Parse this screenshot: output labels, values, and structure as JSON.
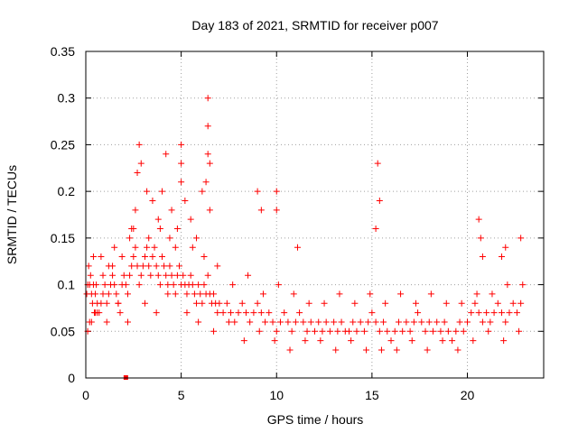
{
  "chart_data": {
    "type": "scatter",
    "title": "Day 183 of 2021, SRMTID for receiver p007",
    "xlabel": "GPS time / hours",
    "ylabel": "SRMTID / TECUs",
    "xlim": [
      0,
      24
    ],
    "ylim": [
      0,
      0.35
    ],
    "xticks": [
      0,
      5,
      10,
      15,
      20
    ],
    "yticks": [
      0,
      0.05,
      0.1,
      0.15,
      0.2,
      0.25,
      0.3,
      0.35
    ],
    "xtick_labels": [
      "0",
      "5",
      "10",
      "15",
      "20"
    ],
    "ytick_labels": [
      "0",
      "0.05",
      "0.1",
      "0.15",
      "0.2",
      "0.25",
      "0.3",
      "0.35"
    ],
    "grid": true,
    "marker": "plus",
    "color": "#ff0000",
    "series": [
      {
        "name": "p007",
        "x": [
          0.05,
          0.1,
          0.15,
          0.2,
          0.25,
          0.3,
          0.35,
          0.4,
          0.45,
          0.5,
          0.55,
          0.6,
          0.7,
          0.8,
          0.9,
          1.0,
          1.1,
          1.2,
          1.3,
          1.4,
          1.5,
          1.6,
          1.7,
          1.8,
          1.9,
          2.0,
          2.1,
          2.2,
          2.3,
          2.4,
          2.5,
          2.6,
          2.7,
          2.8,
          2.9,
          3.0,
          3.1,
          3.2,
          3.3,
          3.4,
          3.5,
          3.6,
          3.7,
          3.8,
          3.9,
          4.0,
          4.1,
          4.2,
          4.3,
          4.4,
          4.5,
          4.6,
          4.7,
          4.8,
          4.9,
          5.0,
          5.1,
          5.2,
          5.3,
          5.4,
          5.5,
          5.6,
          5.7,
          5.8,
          5.9,
          6.0,
          6.1,
          6.2,
          6.3,
          6.4,
          6.5,
          6.6,
          6.7,
          6.8,
          6.9,
          7.0,
          7.2,
          7.4,
          7.6,
          7.8,
          8.0,
          8.2,
          8.4,
          8.6,
          8.8,
          9.0,
          9.2,
          9.4,
          9.6,
          9.8,
          10.0,
          10.2,
          10.4,
          10.6,
          10.8,
          11.0,
          11.2,
          11.4,
          11.6,
          11.8,
          12.0,
          12.2,
          12.4,
          12.6,
          12.8,
          13.0,
          13.2,
          13.4,
          13.6,
          13.8,
          14.0,
          14.2,
          14.4,
          14.6,
          14.8,
          15.0,
          15.2,
          15.4,
          15.6,
          15.8,
          16.0,
          16.2,
          16.4,
          16.6,
          16.8,
          17.0,
          17.2,
          17.4,
          17.6,
          17.8,
          18.0,
          18.2,
          18.4,
          18.6,
          18.8,
          19.0,
          19.2,
          19.4,
          19.6,
          19.8,
          20.0,
          20.2,
          20.4,
          20.6,
          20.8,
          21.0,
          21.2,
          21.4,
          21.6,
          21.8,
          22.0,
          22.2,
          22.4,
          22.6,
          22.8,
          0.1,
          0.3,
          0.5,
          0.8,
          1.2,
          1.5,
          2.4,
          2.6,
          2.7,
          2.8,
          2.9,
          3.2,
          3.5,
          3.8,
          4.0,
          4.2,
          4.5,
          4.8,
          5.0,
          5.0,
          5.0,
          5.2,
          5.5,
          5.8,
          6.1,
          6.3,
          6.4,
          6.4,
          6.4,
          6.5,
          6.5,
          9.0,
          9.2,
          10.0,
          10.0,
          11.1,
          15.2,
          15.4,
          15.3,
          20.6,
          20.7,
          20.8,
          21.8,
          22.0,
          22.8,
          0.2,
          0.6,
          1.1,
          1.7,
          2.2,
          3.1,
          3.7,
          4.3,
          5.3,
          5.9,
          6.7,
          7.5,
          8.3,
          9.1,
          9.9,
          10.7,
          11.5,
          12.3,
          13.1,
          13.9,
          14.7,
          15.5,
          16.3,
          17.1,
          17.9,
          18.7,
          19.5,
          20.3,
          21.1,
          21.9,
          22.7,
          0.4,
          0.9,
          1.4,
          1.9,
          2.3,
          2.5,
          3.3,
          3.9,
          4.4,
          4.7,
          5.6,
          6.2,
          6.9,
          7.7,
          8.5,
          9.3,
          10.1,
          10.9,
          11.7,
          12.5,
          13.3,
          14.1,
          14.9,
          15.7,
          16.5,
          17.3,
          18.1,
          18.9,
          19.7,
          20.5,
          21.3,
          22.1,
          22.9
        ],
        "y": [
          0.09,
          0.1,
          0.12,
          0.1,
          0.11,
          0.09,
          0.08,
          0.1,
          0.07,
          0.09,
          0.1,
          0.08,
          0.07,
          0.08,
          0.09,
          0.1,
          0.08,
          0.09,
          0.1,
          0.11,
          0.1,
          0.09,
          0.08,
          0.07,
          0.1,
          0.11,
          0.1,
          0.09,
          0.11,
          0.12,
          0.13,
          0.14,
          0.12,
          0.1,
          0.11,
          0.12,
          0.13,
          0.14,
          0.12,
          0.11,
          0.13,
          0.14,
          0.12,
          0.11,
          0.1,
          0.13,
          0.12,
          0.11,
          0.1,
          0.12,
          0.11,
          0.1,
          0.09,
          0.11,
          0.12,
          0.1,
          0.11,
          0.1,
          0.09,
          0.1,
          0.11,
          0.1,
          0.09,
          0.08,
          0.1,
          0.09,
          0.08,
          0.1,
          0.09,
          0.11,
          0.09,
          0.08,
          0.09,
          0.08,
          0.07,
          0.08,
          0.07,
          0.08,
          0.07,
          0.06,
          0.07,
          0.08,
          0.07,
          0.06,
          0.07,
          0.08,
          0.07,
          0.06,
          0.07,
          0.06,
          0.05,
          0.06,
          0.07,
          0.06,
          0.05,
          0.06,
          0.07,
          0.06,
          0.05,
          0.06,
          0.05,
          0.06,
          0.05,
          0.06,
          0.05,
          0.06,
          0.05,
          0.06,
          0.05,
          0.05,
          0.06,
          0.05,
          0.06,
          0.05,
          0.06,
          0.07,
          0.06,
          0.05,
          0.06,
          0.05,
          0.04,
          0.05,
          0.06,
          0.05,
          0.06,
          0.05,
          0.06,
          0.07,
          0.06,
          0.05,
          0.06,
          0.05,
          0.06,
          0.05,
          0.06,
          0.05,
          0.04,
          0.05,
          0.06,
          0.05,
          0.06,
          0.07,
          0.08,
          0.07,
          0.06,
          0.07,
          0.06,
          0.07,
          0.08,
          0.07,
          0.06,
          0.07,
          0.08,
          0.07,
          0.08,
          0.05,
          0.06,
          0.07,
          0.13,
          0.12,
          0.14,
          0.16,
          0.18,
          0.22,
          0.25,
          0.23,
          0.2,
          0.19,
          0.17,
          0.2,
          0.24,
          0.18,
          0.16,
          0.25,
          0.23,
          0.21,
          0.19,
          0.17,
          0.15,
          0.2,
          0.21,
          0.24,
          0.27,
          0.3,
          0.23,
          0.18,
          0.2,
          0.18,
          0.2,
          0.18,
          0.14,
          0.16,
          0.19,
          0.23,
          0.17,
          0.15,
          0.13,
          0.13,
          0.14,
          0.15,
          0.06,
          0.07,
          0.06,
          0.08,
          0.06,
          0.08,
          0.07,
          0.09,
          0.07,
          0.06,
          0.05,
          0.06,
          0.04,
          0.05,
          0.04,
          0.03,
          0.04,
          0.04,
          0.03,
          0.04,
          0.03,
          0.03,
          0.03,
          0.04,
          0.03,
          0.04,
          0.03,
          0.04,
          0.05,
          0.04,
          0.05,
          0.13,
          0.11,
          0.12,
          0.13,
          0.15,
          0.16,
          0.15,
          0.16,
          0.15,
          0.14,
          0.14,
          0.13,
          0.12,
          0.1,
          0.11,
          0.09,
          0.1,
          0.09,
          0.08,
          0.08,
          0.09,
          0.08,
          0.09,
          0.08,
          0.09,
          0.08,
          0.09,
          0.08,
          0.08,
          0.09,
          0.09,
          0.1,
          0.1
        ]
      }
    ],
    "outliers": {
      "x": [
        2.1
      ],
      "y": [
        0.0
      ]
    }
  }
}
